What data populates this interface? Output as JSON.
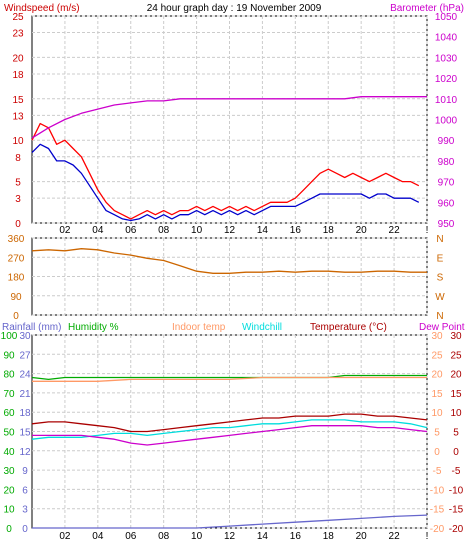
{
  "header": {
    "windspeed_label": "Windspeed (m/s)",
    "title": "24 hour graph day : 19 November 2009",
    "barometer_label": "Barometer (hPa)"
  },
  "legend2": {
    "rainfall": "Rainfall (mm)",
    "humidity": "Humidity %",
    "indoor": "Indoor temp",
    "windchill": "Windchill",
    "temperature": "Temperature (°C)",
    "dewpoint": "Dew Point"
  },
  "colors": {
    "wind_gust": "#ff0000",
    "wind_avg": "#0000cc",
    "barometer": "#cc00cc",
    "direction": "#cc6600",
    "rainfall": "#6666cc",
    "humidity": "#00aa00",
    "indoor": "#ff9966",
    "windchill": "#00dddd",
    "temperature": "#aa0000",
    "dewpoint": "#cc00cc",
    "left_axis": "#cc0000",
    "right_axis": "#cc00cc",
    "grid": "#cccccc"
  },
  "x_axis": {
    "ticks": [
      "02",
      "04",
      "06",
      "08",
      "10",
      "12",
      "14",
      "16",
      "18",
      "20",
      "22",
      "!"
    ],
    "range_hours": [
      0,
      24
    ]
  },
  "chart_data": [
    {
      "type": "line",
      "panel": "wind",
      "title": "24 hour graph day : 19 November 2009",
      "ylabel": "Windspeed (m/s)",
      "ylim": [
        0,
        25
      ],
      "yticks": [
        0,
        3,
        5,
        8,
        10,
        13,
        15,
        18,
        20,
        23,
        25
      ],
      "y2label": "Barometer (hPa)",
      "y2lim": [
        950,
        1050
      ],
      "y2ticks": [
        950,
        960,
        970,
        980,
        990,
        1000,
        1010,
        1020,
        1030,
        1040,
        1050
      ],
      "series": [
        {
          "name": "Windspeed gust",
          "axis": "left",
          "x": [
            0,
            0.5,
            1,
            1.5,
            2,
            2.5,
            3,
            3.5,
            4,
            4.5,
            5,
            5.5,
            6,
            6.5,
            7,
            7.5,
            8,
            8.5,
            9,
            9.5,
            10,
            10.5,
            11,
            11.5,
            12,
            12.5,
            13,
            13.5,
            14,
            14.5,
            15,
            15.5,
            16,
            16.5,
            17,
            17.5,
            18,
            18.5,
            19,
            19.5,
            20,
            20.5,
            21,
            21.5,
            22,
            22.5,
            23,
            23.5
          ],
          "y": [
            10,
            12,
            11.5,
            9.5,
            10,
            9,
            8,
            6,
            4,
            2.5,
            1.5,
            1,
            0.5,
            1,
            1.5,
            1,
            1.5,
            1,
            1.5,
            1.5,
            2,
            1.5,
            2,
            1.5,
            2,
            1.5,
            2,
            1.5,
            2,
            2.5,
            2.5,
            2.5,
            3,
            4,
            5,
            6,
            6.5,
            6,
            5.5,
            6,
            5.5,
            5,
            5.5,
            6,
            5.5,
            5,
            5,
            4.5
          ]
        },
        {
          "name": "Windspeed average",
          "axis": "left",
          "x": [
            0,
            0.5,
            1,
            1.5,
            2,
            2.5,
            3,
            3.5,
            4,
            4.5,
            5,
            5.5,
            6,
            6.5,
            7,
            7.5,
            8,
            8.5,
            9,
            9.5,
            10,
            10.5,
            11,
            11.5,
            12,
            12.5,
            13,
            13.5,
            14,
            14.5,
            15,
            15.5,
            16,
            16.5,
            17,
            17.5,
            18,
            18.5,
            19,
            19.5,
            20,
            20.5,
            21,
            21.5,
            22,
            22.5,
            23,
            23.5
          ],
          "y": [
            8.5,
            9.5,
            9,
            7.5,
            7.5,
            7,
            6,
            4.5,
            3,
            1.5,
            1,
            0.5,
            0.3,
            0.5,
            1,
            0.5,
            1,
            0.5,
            1,
            1,
            1.5,
            1,
            1.5,
            1,
            1.5,
            1,
            1.5,
            1,
            1.5,
            2,
            2,
            2,
            2,
            2.5,
            3,
            3.5,
            3.5,
            3.5,
            3.5,
            3.5,
            3.5,
            3,
            3.5,
            3.5,
            3,
            3,
            3,
            2.5
          ]
        },
        {
          "name": "Barometer",
          "axis": "right",
          "x": [
            0,
            1,
            2,
            3,
            4,
            5,
            6,
            7,
            8,
            9,
            10,
            11,
            12,
            13,
            14,
            15,
            16,
            17,
            18,
            19,
            20,
            21,
            22,
            23,
            24
          ],
          "y": [
            991,
            996,
            1000,
            1003,
            1005,
            1007,
            1008,
            1009,
            1009,
            1010,
            1010,
            1010,
            1010,
            1010,
            1010,
            1010,
            1010,
            1010,
            1010,
            1010,
            1011,
            1011,
            1011,
            1011,
            1011
          ]
        }
      ]
    },
    {
      "type": "line",
      "panel": "direction",
      "ylim": [
        0,
        360
      ],
      "yticks": [
        0,
        90,
        180,
        270,
        360
      ],
      "y2ticks": [
        "N",
        "W",
        "S",
        "E",
        "N"
      ],
      "series": [
        {
          "name": "Wind direction",
          "x": [
            0,
            1,
            2,
            3,
            4,
            5,
            6,
            7,
            8,
            9,
            10,
            11,
            12,
            13,
            14,
            15,
            16,
            17,
            18,
            19,
            20,
            21,
            22,
            23,
            24
          ],
          "y": [
            300,
            305,
            300,
            310,
            305,
            290,
            280,
            265,
            255,
            230,
            205,
            195,
            195,
            200,
            200,
            205,
            200,
            205,
            205,
            200,
            200,
            205,
            205,
            200,
            200
          ]
        }
      ]
    },
    {
      "type": "line",
      "panel": "temperature",
      "yticks_rain": [
        0,
        3,
        6,
        9,
        12,
        15,
        18,
        21,
        24,
        27,
        30
      ],
      "yticks_humidity": [
        0,
        10,
        20,
        30,
        40,
        50,
        60,
        70,
        80,
        90,
        100
      ],
      "ylim_temp": [
        -20,
        30
      ],
      "yticks_temp": [
        -20,
        -15,
        -10,
        -5,
        0,
        5,
        10,
        15,
        20,
        25,
        30
      ],
      "series": [
        {
          "name": "Rainfall",
          "axis": "rain",
          "x": [
            0,
            2,
            4,
            6,
            8,
            10,
            12,
            14,
            16,
            18,
            20,
            22,
            24
          ],
          "y": [
            0,
            0,
            0,
            0,
            0,
            0,
            0.3,
            0.6,
            0.9,
            1.2,
            1.5,
            1.8,
            2
          ]
        },
        {
          "name": "Humidity",
          "axis": "humidity",
          "x": [
            0,
            1,
            2,
            3,
            4,
            5,
            6,
            7,
            8,
            9,
            10,
            11,
            12,
            13,
            14,
            15,
            16,
            17,
            18,
            19,
            20,
            21,
            22,
            23,
            24
          ],
          "y": [
            78,
            77,
            78,
            78,
            78,
            78,
            78,
            78,
            78,
            78,
            78,
            78,
            78,
            78,
            78,
            78,
            78,
            78,
            78,
            79,
            79,
            79,
            79,
            79,
            79
          ]
        },
        {
          "name": "Indoor temp",
          "axis": "temp",
          "x": [
            0,
            2,
            4,
            6,
            8,
            10,
            12,
            14,
            16,
            18,
            20,
            22,
            24
          ],
          "y": [
            18,
            18,
            18,
            18.5,
            18.5,
            18.5,
            18.5,
            19,
            19,
            19,
            19,
            19,
            19
          ]
        },
        {
          "name": "Temperature",
          "axis": "temp",
          "x": [
            0,
            1,
            2,
            3,
            4,
            5,
            6,
            7,
            8,
            9,
            10,
            11,
            12,
            13,
            14,
            15,
            16,
            17,
            18,
            19,
            20,
            21,
            22,
            23,
            24
          ],
          "y": [
            7,
            7.5,
            7.5,
            7,
            6.5,
            6,
            5,
            5,
            5.5,
            6,
            6.5,
            7,
            7.5,
            8,
            8.5,
            8.5,
            9,
            9,
            9,
            9.5,
            9.5,
            9,
            9,
            8.5,
            8
          ]
        },
        {
          "name": "Windchill",
          "axis": "temp",
          "x": [
            0,
            1,
            2,
            3,
            4,
            5,
            6,
            7,
            8,
            9,
            10,
            11,
            12,
            13,
            14,
            15,
            16,
            17,
            18,
            19,
            20,
            21,
            22,
            23,
            24
          ],
          "y": [
            3,
            3.5,
            3.5,
            3.5,
            4,
            4.5,
            4.5,
            4,
            4.5,
            5,
            5.5,
            6,
            6,
            6.5,
            7,
            7,
            7.5,
            8,
            8,
            8,
            7.5,
            7.5,
            7.5,
            7,
            6
          ]
        },
        {
          "name": "Dew Point",
          "axis": "temp",
          "x": [
            0,
            1,
            2,
            3,
            4,
            5,
            6,
            7,
            8,
            9,
            10,
            11,
            12,
            13,
            14,
            15,
            16,
            17,
            18,
            19,
            20,
            21,
            22,
            23,
            24
          ],
          "y": [
            4,
            4,
            4,
            4,
            3.5,
            3,
            2,
            1.5,
            2,
            2.5,
            3,
            3.5,
            4,
            4.5,
            5,
            5.5,
            6,
            6.5,
            6.5,
            6.5,
            6.5,
            6,
            6,
            5.5,
            5
          ]
        }
      ]
    }
  ]
}
